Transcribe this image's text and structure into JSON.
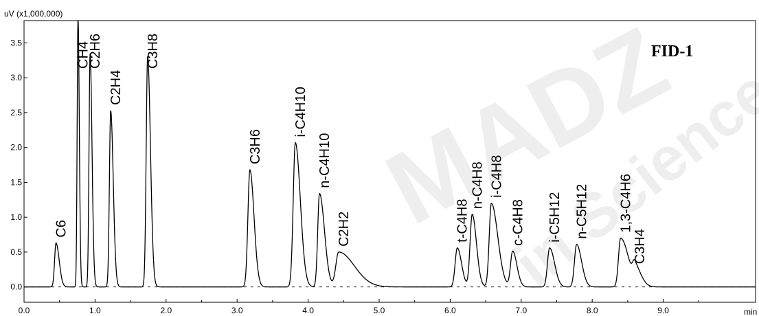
{
  "chart_data": {
    "type": "line",
    "ylabel": "uV (x1,000,000)",
    "xlabel": "min",
    "detector": "FID-1",
    "watermark": [
      "MADZ",
      "in Science"
    ],
    "xlim": [
      0.0,
      10.3
    ],
    "ylim": [
      -0.22,
      3.82
    ],
    "x_ticks": [
      0.0,
      1.0,
      2.0,
      3.0,
      4.0,
      5.0,
      6.0,
      7.0,
      8.0,
      9.0
    ],
    "x_tick_labels": [
      "0.0",
      "1.0",
      "2.0",
      "3.0",
      "4.0",
      "5.0",
      "6.0",
      "7.0",
      "8.0",
      "9.0"
    ],
    "y_ticks": [
      0.0,
      0.5,
      1.0,
      1.5,
      2.0,
      2.5,
      3.0,
      3.5
    ],
    "y_tick_labels": [
      "0.0",
      "0.5",
      "1.0",
      "1.5",
      "2.0",
      "2.5",
      "3.0",
      "3.5"
    ],
    "series": [
      {
        "color": "#000000",
        "peaks": [
          {
            "name": "C6",
            "rt": 0.45,
            "height": 0.63,
            "width": 0.02,
            "tail": 0.025
          },
          {
            "name": "CH4",
            "rt": 0.76,
            "height": 3.9,
            "width": 0.012,
            "tail": 0.006
          },
          {
            "name": "C2H6",
            "rt": 0.93,
            "height": 3.35,
            "width": 0.015,
            "tail": 0.012
          },
          {
            "name": "C2H4",
            "rt": 1.22,
            "height": 2.53,
            "width": 0.018,
            "tail": 0.018
          },
          {
            "name": "C3H8",
            "rt": 1.74,
            "height": 3.31,
            "width": 0.02,
            "tail": 0.02
          },
          {
            "name": "C3H6",
            "rt": 3.18,
            "height": 1.68,
            "width": 0.028,
            "tail": 0.03
          },
          {
            "name": "i-C4H10",
            "rt": 3.82,
            "height": 2.07,
            "width": 0.03,
            "tail": 0.04
          },
          {
            "name": "n-C4H10",
            "rt": 4.16,
            "height": 1.34,
            "width": 0.025,
            "tail": 0.045
          },
          {
            "name": "C2H2",
            "rt": 4.43,
            "height": 0.5,
            "width": 0.04,
            "tail": 0.18
          },
          {
            "name": "t-C4H8",
            "rt": 6.1,
            "height": 0.56,
            "width": 0.03,
            "tail": 0.03
          },
          {
            "name": "n-C4H8",
            "rt": 6.31,
            "height": 1.04,
            "width": 0.03,
            "tail": 0.03
          },
          {
            "name": "i-C4H8",
            "rt": 6.58,
            "height": 1.2,
            "width": 0.03,
            "tail": 0.06
          },
          {
            "name": "c-C4H8",
            "rt": 6.88,
            "height": 0.51,
            "width": 0.03,
            "tail": 0.03
          },
          {
            "name": "i-C5H12",
            "rt": 7.4,
            "height": 0.56,
            "width": 0.03,
            "tail": 0.04
          },
          {
            "name": "n-C5H12",
            "rt": 7.78,
            "height": 0.61,
            "width": 0.03,
            "tail": 0.04
          },
          {
            "name": "1,3-C4H6",
            "rt": 8.4,
            "height": 0.7,
            "width": 0.03,
            "tail": 0.08
          },
          {
            "name": "C3H4",
            "rt": 8.6,
            "height": 0.25,
            "width": 0.03,
            "tail": 0.06
          }
        ]
      }
    ]
  }
}
